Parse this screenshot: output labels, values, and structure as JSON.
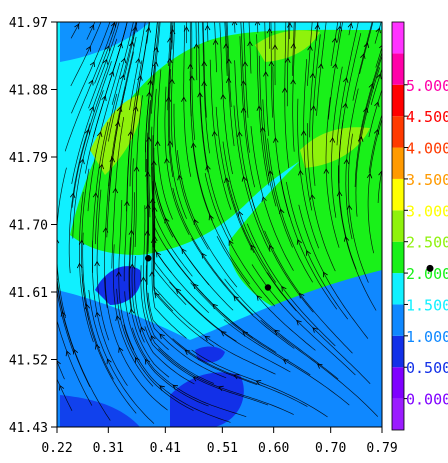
{
  "chart_data": {
    "type": "heatmap",
    "title": "",
    "xlabel": "",
    "ylabel": "",
    "xlim": [
      0.22,
      0.79
    ],
    "ylim": [
      41.43,
      41.97
    ],
    "x_ticks": [
      "0.22",
      "0.31",
      "0.41",
      "0.51",
      "0.60",
      "0.70",
      "0.79"
    ],
    "y_ticks": [
      "41.97",
      "41.88",
      "41.79",
      "41.70",
      "41.61",
      "41.52",
      "41.43"
    ],
    "colorbar": {
      "levels": [
        {
          "label": "",
          "color": "#9b1cff"
        },
        {
          "label": "0.000",
          "color": "#7f00ff"
        },
        {
          "label": "0.500",
          "color": "#1230e8"
        },
        {
          "label": "1.000",
          "color": "#0f88ff"
        },
        {
          "label": "1.500",
          "color": "#10f0ff"
        },
        {
          "label": "2.000",
          "color": "#19f119"
        },
        {
          "label": "2.500",
          "color": "#8ff20c"
        },
        {
          "label": "3.000",
          "color": "#ffff00"
        },
        {
          "label": "3.500",
          "color": "#ff9a00"
        },
        {
          "label": "4.000",
          "color": "#ff3a00"
        },
        {
          "label": "4.500",
          "color": "#ff0000"
        },
        {
          "label": "5.000",
          "color": "#ff00a8"
        },
        {
          "label": "",
          "color": "#ff33ff"
        }
      ]
    },
    "markers": [
      {
        "x": 0.38,
        "y": 41.655
      },
      {
        "x": 0.59,
        "y": 41.616
      }
    ],
    "extra_marker": {
      "side": "right-of-colorbar",
      "level": "2.000"
    }
  }
}
